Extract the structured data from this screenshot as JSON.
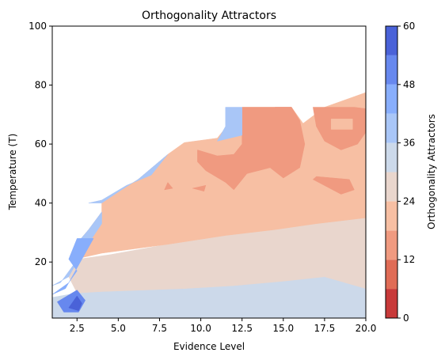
{
  "chart_data": {
    "type": "contour",
    "title": "Orthogonality Attractors",
    "xlabel": "Evidence Level",
    "ylabel": "Temperature (T)",
    "xlim": [
      1,
      20
    ],
    "ylim": [
      1,
      100
    ],
    "x_ticks": [
      "2.5",
      "5.0",
      "7.5",
      "10.0",
      "12.5",
      "15.0",
      "17.5",
      "20.0"
    ],
    "y_ticks": [
      "20",
      "40",
      "60",
      "80",
      "100"
    ],
    "colorbar": {
      "label": "Orthogonality Attractors",
      "range": [
        0,
        60
      ],
      "levels": [
        0,
        6,
        12,
        18,
        24,
        30,
        36,
        42,
        48,
        54,
        60
      ],
      "ticks": [
        "0",
        "12",
        "24",
        "36",
        "48",
        "60"
      ],
      "colors": [
        "#c83a3a",
        "#e06c56",
        "#f09a80",
        "#f7bfa3",
        "#e9d6cd",
        "#ccd9ea",
        "#a9c6f7",
        "#88aefc",
        "#6788ee",
        "#4a62d8"
      ]
    },
    "grid": false,
    "regions": [
      {
        "band": "0-6",
        "color": "#c83a3a",
        "points": [
          [
            14.5,
            72.5
          ],
          [
            15.5,
            72.5
          ],
          [
            15.3,
            70.7
          ],
          [
            14.7,
            70.7
          ]
        ]
      },
      {
        "band": "0-6",
        "color": "#c83a3a",
        "points": [
          [
            19.3,
            72.5
          ],
          [
            20.0,
            77.5
          ],
          [
            20.0,
            72.5
          ]
        ]
      },
      {
        "band": "30-36",
        "color": "#ccd9ea",
        "points": [
          [
            1.0,
            1.0
          ],
          [
            20.0,
            1.0
          ],
          [
            20.0,
            11.0
          ],
          [
            17.5,
            15.0
          ],
          [
            15.0,
            13.5
          ],
          [
            12.0,
            12.0
          ],
          [
            9.0,
            11.0
          ],
          [
            4.0,
            10.0
          ],
          [
            2.5,
            9.5
          ],
          [
            1.0,
            8.0
          ]
        ]
      },
      {
        "band": "24-30",
        "color": "#e9d6cd",
        "points": [
          [
            2.5,
            9.5
          ],
          [
            4.0,
            10.0
          ],
          [
            9.0,
            11.0
          ],
          [
            12.0,
            12.0
          ],
          [
            15.0,
            13.5
          ],
          [
            17.5,
            15.0
          ],
          [
            20.0,
            11.0
          ],
          [
            20.0,
            35.0
          ],
          [
            17.0,
            33.0
          ],
          [
            14.5,
            31.0
          ],
          [
            11.5,
            29.0
          ],
          [
            8.0,
            26.0
          ],
          [
            4.5,
            22.5
          ],
          [
            2.6,
            21.0
          ],
          [
            2.0,
            15.0
          ]
        ]
      },
      {
        "band": "18-24",
        "color": "#f7bfa3",
        "points": [
          [
            2.8,
            21.5
          ],
          [
            4.0,
            23.0
          ],
          [
            8.0,
            26.0
          ],
          [
            11.5,
            29.0
          ],
          [
            14.5,
            31.0
          ],
          [
            17.0,
            33.0
          ],
          [
            20.0,
            35.0
          ],
          [
            20.0,
            77.5
          ],
          [
            17.5,
            72.5
          ],
          [
            16.2,
            67.0
          ],
          [
            15.5,
            72.5
          ],
          [
            12.5,
            72.5
          ],
          [
            11.0,
            62.0
          ],
          [
            9.0,
            60.5
          ],
          [
            8.0,
            56.5
          ],
          [
            6.2,
            48.0
          ],
          [
            5.2,
            44.5
          ],
          [
            4.0,
            40.0
          ],
          [
            4.0,
            37.0
          ],
          [
            3.2,
            31.0
          ],
          [
            2.6,
            27.0
          ]
        ]
      },
      {
        "band": "12-18",
        "color": "#f09a80",
        "points": [
          [
            12.5,
            72.5
          ],
          [
            15.5,
            72.5
          ],
          [
            16.0,
            68.0
          ],
          [
            16.3,
            60.0
          ],
          [
            16.0,
            52.0
          ],
          [
            15.0,
            48.5
          ],
          [
            14.2,
            52.0
          ],
          [
            12.8,
            50.0
          ],
          [
            12.0,
            44.5
          ],
          [
            11.5,
            47.0
          ],
          [
            10.3,
            51.0
          ],
          [
            9.8,
            54.0
          ],
          [
            9.8,
            58.0
          ],
          [
            11.0,
            56.0
          ],
          [
            12.0,
            56.5
          ],
          [
            12.5,
            60.0
          ]
        ]
      },
      {
        "band": "12-18",
        "color": "#f09a80",
        "points": [
          [
            16.8,
            72.5
          ],
          [
            19.3,
            72.5
          ],
          [
            20.0,
            72.0
          ],
          [
            20.0,
            64.0
          ],
          [
            19.5,
            60.0
          ],
          [
            18.5,
            58.0
          ],
          [
            17.5,
            61.0
          ],
          [
            17.0,
            66.0
          ]
        ]
      },
      {
        "band": "12-18",
        "color": "#f09a80",
        "points": [
          [
            17.0,
            49.0
          ],
          [
            19.0,
            48.0
          ],
          [
            19.3,
            44.5
          ],
          [
            18.5,
            43.0
          ],
          [
            16.8,
            48.0
          ]
        ]
      },
      {
        "band": "12-18",
        "color": "#f09a80",
        "points": [
          [
            7.8,
            44.5
          ],
          [
            8.3,
            45.0
          ],
          [
            8.0,
            47.0
          ]
        ]
      },
      {
        "band": "12-18",
        "color": "#f09a80",
        "points": [
          [
            9.5,
            45.0
          ],
          [
            10.2,
            44.0
          ],
          [
            10.3,
            46.0
          ]
        ]
      },
      {
        "band": "18-24",
        "color": "#f7bfa3",
        "points": [
          [
            17.9,
            65.0
          ],
          [
            19.2,
            65.0
          ],
          [
            19.2,
            68.5
          ],
          [
            17.9,
            68.5
          ]
        ]
      },
      {
        "band": "36-42",
        "color": "#a9c6f7",
        "points": [
          [
            11.5,
            72.5
          ],
          [
            12.5,
            72.5
          ],
          [
            12.5,
            63.0
          ],
          [
            11.0,
            61.0
          ],
          [
            11.5,
            66.0
          ]
        ]
      },
      {
        "band": "36-42",
        "color": "#a9c6f7",
        "points": [
          [
            3.2,
            40.0
          ],
          [
            4.0,
            41.0
          ],
          [
            5.5,
            46.0
          ],
          [
            7.0,
            49.5
          ],
          [
            8.0,
            56.5
          ],
          [
            6.2,
            48.0
          ],
          [
            5.2,
            44.5
          ],
          [
            4.0,
            40.0
          ]
        ]
      },
      {
        "band": "36-42",
        "color": "#a9c6f7",
        "points": [
          [
            1.0,
            12.0
          ],
          [
            2.0,
            15.0
          ],
          [
            2.6,
            21.0
          ],
          [
            2.6,
            27.0
          ],
          [
            3.2,
            31.0
          ],
          [
            4.0,
            37.0
          ],
          [
            4.0,
            33.0
          ],
          [
            2.8,
            23.0
          ],
          [
            1.5,
            13.0
          ]
        ]
      },
      {
        "band": "42-48",
        "color": "#88aefc",
        "points": [
          [
            1.0,
            9.0
          ],
          [
            2.0,
            13.0
          ],
          [
            2.5,
            17.0
          ],
          [
            2.0,
            21.0
          ],
          [
            2.5,
            28.0
          ],
          [
            3.5,
            28.0
          ],
          [
            2.5,
            18.0
          ],
          [
            1.8,
            11.0
          ]
        ]
      },
      {
        "band": "48-54",
        "color": "#6788ee",
        "points": [
          [
            1.3,
            6.5
          ],
          [
            2.5,
            10.5
          ],
          [
            3.0,
            7.0
          ],
          [
            2.6,
            3.0
          ],
          [
            1.7,
            3.0
          ]
        ]
      },
      {
        "band": "54-60",
        "color": "#4a62d8",
        "points": [
          [
            2.0,
            4.5
          ],
          [
            2.5,
            8.5
          ],
          [
            2.8,
            6.0
          ],
          [
            2.6,
            3.5
          ]
        ]
      }
    ]
  }
}
